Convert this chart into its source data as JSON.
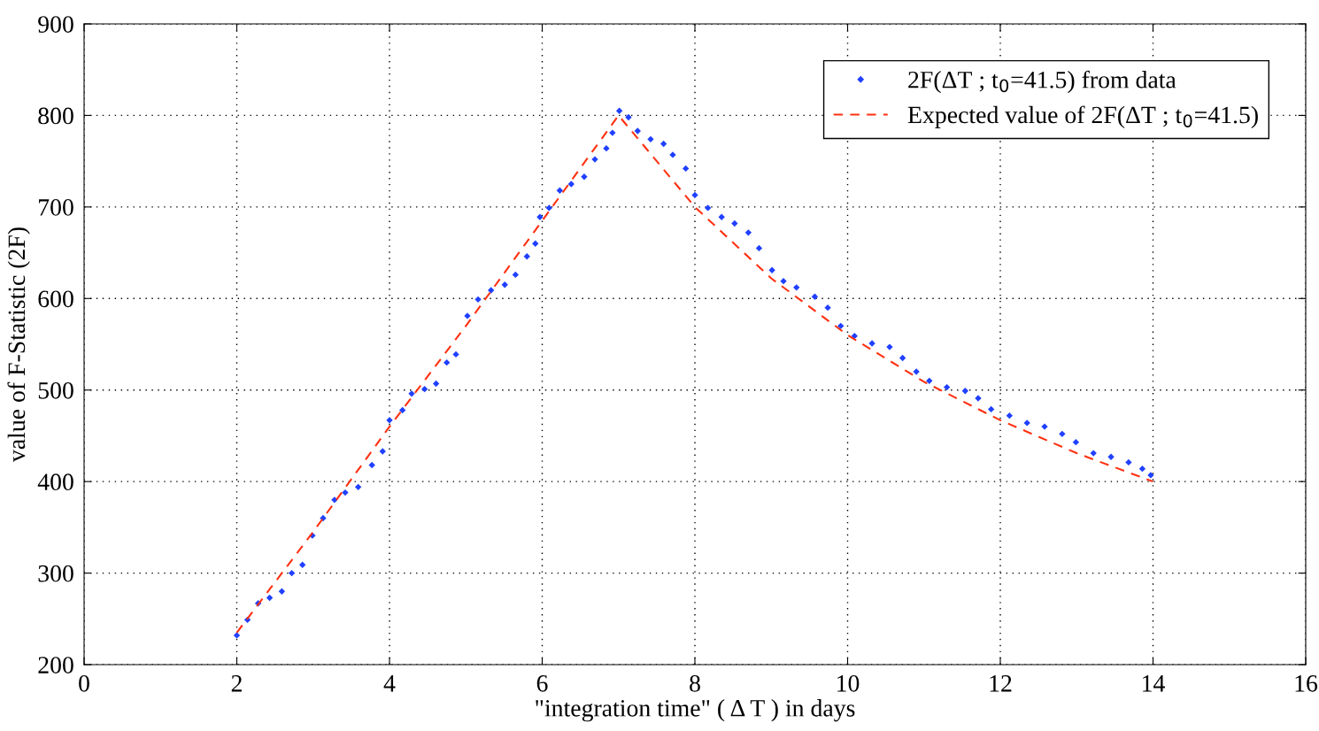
{
  "chart_data": {
    "type": "scatter",
    "xlabel": "\"integration time\" ( Δ T ) in days",
    "ylabel": "value of F-Statistic (2F)",
    "xlim": [
      0,
      16
    ],
    "ylim": [
      200,
      900
    ],
    "xticks": [
      0,
      2,
      4,
      6,
      8,
      10,
      12,
      14,
      16
    ],
    "yticks": [
      200,
      300,
      400,
      500,
      600,
      700,
      800,
      900
    ],
    "grid": true,
    "legend": "top right",
    "series": [
      {
        "name": "2F(ΔT ; t$_{0}$=41.5) from data",
        "marker": "diamond",
        "color": "#2040ff",
        "x": [
          2.0,
          2.14,
          2.28,
          2.43,
          2.59,
          2.72,
          2.86,
          2.99,
          3.13,
          3.28,
          3.42,
          3.59,
          3.77,
          3.91,
          4.0,
          4.17,
          4.29,
          4.46,
          4.61,
          4.75,
          4.87,
          5.02,
          5.16,
          5.33,
          5.51,
          5.65,
          5.8,
          5.91,
          5.97,
          6.09,
          6.23,
          6.38,
          6.55,
          6.69,
          6.84,
          6.92,
          7.01,
          7.13,
          7.25,
          7.42,
          7.59,
          7.71,
          7.88,
          8.0,
          8.17,
          8.35,
          8.52,
          8.7,
          8.84,
          9.01,
          9.16,
          9.33,
          9.57,
          9.74,
          9.91,
          10.09,
          10.32,
          10.55,
          10.72,
          10.9,
          11.07,
          11.3,
          11.54,
          11.71,
          11.88,
          12.12,
          12.35,
          12.58,
          12.81,
          12.99,
          13.22,
          13.45,
          13.68,
          13.86,
          13.97
        ],
        "values": [
          232,
          249,
          267,
          273,
          280,
          300,
          309,
          341,
          360,
          380,
          388,
          394,
          418,
          433,
          467,
          478,
          496,
          501,
          507,
          530,
          539,
          581,
          599,
          609,
          615,
          626,
          646,
          660,
          689,
          699,
          718,
          725,
          733,
          752,
          764,
          781,
          805,
          798,
          783,
          774,
          769,
          757,
          742,
          713,
          699,
          689,
          682,
          672,
          655,
          631,
          619,
          612,
          602,
          590,
          570,
          559,
          551,
          547,
          535,
          520,
          510,
          503,
          499,
          491,
          479,
          472,
          464,
          460,
          452,
          443,
          431,
          427,
          421,
          414,
          407
        ]
      },
      {
        "name": "Expected value of 2F(ΔT ; t$_{0}$=41.5)",
        "type": "line",
        "line_style": "dashed",
        "color": "#ff3010",
        "x": [
          2,
          3,
          4,
          5,
          6,
          7,
          8,
          9,
          10,
          11,
          12,
          13,
          14
        ],
        "values": [
          235,
          345,
          460,
          570,
          685,
          800,
          700,
          622,
          560,
          509,
          467,
          431,
          400
        ]
      }
    ]
  }
}
